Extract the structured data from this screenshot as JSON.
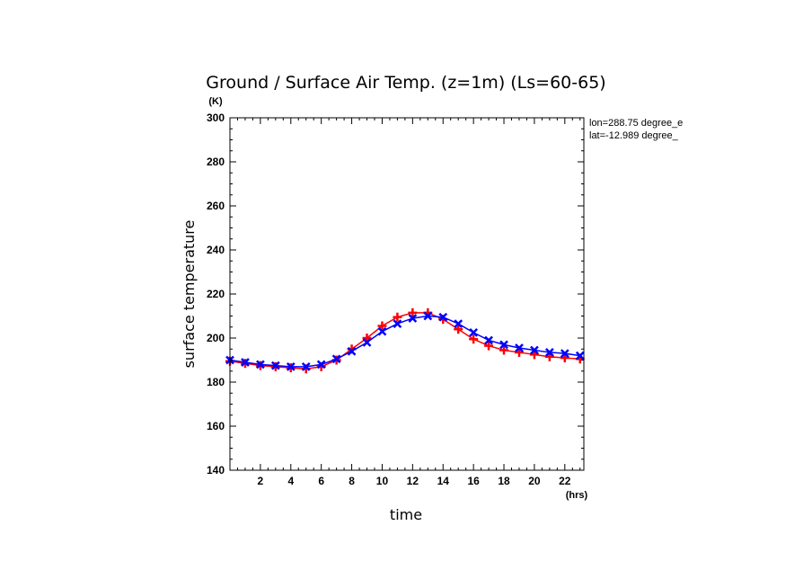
{
  "chart_data": {
    "type": "line",
    "title": "Ground / Surface Air Temp. (z=1m) (Ls=60-65)",
    "xlabel": "time",
    "ylabel": "surface temperature",
    "xunit": "(hrs)",
    "yunit": "(K)",
    "xlim": [
      0,
      23.25
    ],
    "ylim": [
      140,
      300
    ],
    "xticks": [
      2,
      4,
      6,
      8,
      10,
      12,
      14,
      16,
      18,
      20,
      22
    ],
    "yticks": [
      140,
      160,
      180,
      200,
      220,
      240,
      260,
      280,
      300
    ],
    "grid": false,
    "annotations": [
      "lon=288.75 degree_e",
      "lat=-12.989 degree_"
    ],
    "x": [
      0,
      1,
      2,
      3,
      4,
      5,
      6,
      7,
      8,
      9,
      10,
      11,
      12,
      13,
      14,
      15,
      16,
      17,
      18,
      19,
      20,
      21,
      22,
      23
    ],
    "series": [
      {
        "color": "#ff0000",
        "marker": "plus",
        "values": [
          189.5,
          188.5,
          187.5,
          187,
          186.5,
          186,
          187,
          190,
          195,
          200,
          205.5,
          209.5,
          211.5,
          211.5,
          208.5,
          204,
          199.5,
          196.5,
          194.5,
          193.5,
          192.5,
          191.5,
          191,
          190.5
        ]
      },
      {
        "color": "#0000ff",
        "marker": "x",
        "values": [
          190,
          189,
          188,
          187.5,
          187,
          187,
          188,
          190.5,
          194,
          198,
          203,
          206.5,
          209,
          210,
          209.5,
          206.5,
          202.5,
          199,
          197,
          195.5,
          194.5,
          193.5,
          193,
          192
        ]
      }
    ]
  }
}
